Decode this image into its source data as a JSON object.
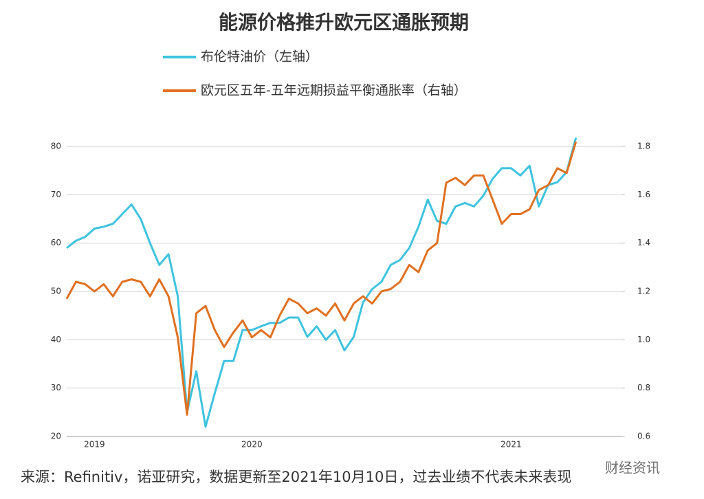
{
  "chart_data": {
    "type": "line",
    "title": "能源价格推升欧元区通胀预期",
    "source": "来源：Refinitiv，诺亚研究，数据更新至2021年10月10日，过去业绩不代表未来表现",
    "watermark": "财经资讯",
    "legend": "top",
    "grid": true,
    "categories": [
      null,
      null,
      null,
      "2019",
      null,
      null,
      null,
      null,
      null,
      null,
      null,
      null,
      null,
      null,
      null,
      null,
      null,
      null,
      null,
      null,
      "2020",
      null,
      null,
      null,
      null,
      null,
      null,
      null,
      null,
      null,
      null,
      null,
      null,
      null,
      null,
      null,
      null,
      null,
      null,
      null,
      null,
      null,
      null,
      null,
      null,
      null,
      null,
      null,
      "2021",
      null,
      null,
      null,
      null,
      null,
      null,
      null,
      null,
      null,
      null,
      null,
      null
    ],
    "ylim": [
      20,
      83
    ],
    "yticks": [
      20,
      30,
      40,
      50,
      60,
      70,
      80
    ],
    "y2lim": [
      0.6,
      1.86
    ],
    "y2ticks": [
      0.6,
      0.8,
      {
        "value": 1,
        "label": "1.0"
      },
      1.2,
      1.4,
      1.6,
      1.8
    ],
    "series": [
      {
        "name": "布伦特油价（左轴）",
        "color": "#3ec3de",
        "values": [
          59,
          60.5,
          61.3,
          63,
          63.4,
          64,
          66,
          68,
          65,
          60,
          55.5,
          57.7,
          49,
          25,
          33.5,
          22,
          29,
          35.6,
          35.6,
          42,
          42,
          42.8,
          43.5,
          43.5,
          44.6,
          44.6,
          40.6,
          42.8,
          40,
          42,
          37.8,
          40.6,
          47.7,
          50.5,
          52,
          55.5,
          56.5,
          59,
          63.4,
          69,
          64.6,
          64,
          67.6,
          68.3,
          67.6,
          69.8,
          73.3,
          75.5,
          75.5,
          74,
          76,
          67.6,
          72,
          72.6,
          74.7,
          81.8,
          null,
          null,
          null,
          null,
          null
        ]
      },
      {
        "name": "欧元区五年-五年远期损益平衡通胀率（右轴）",
        "color": "#e07020",
        "axis": "y2",
        "values": [
          1.17,
          1.24,
          1.23,
          1.2,
          1.23,
          1.18,
          1.24,
          1.25,
          1.24,
          1.18,
          1.25,
          1.18,
          1.01,
          0.69,
          1.11,
          1.14,
          1.04,
          0.97,
          1.03,
          1.08,
          1.01,
          1.04,
          1.01,
          1.1,
          1.17,
          1.15,
          1.11,
          1.13,
          1.1,
          1.15,
          1.08,
          1.15,
          1.18,
          1.15,
          1.2,
          1.21,
          1.24,
          1.31,
          1.28,
          1.37,
          1.4,
          1.65,
          1.67,
          1.64,
          1.68,
          1.68,
          1.58,
          1.48,
          1.52,
          1.52,
          1.54,
          1.62,
          1.64,
          1.71,
          1.69,
          1.82,
          null,
          null,
          null,
          null,
          null
        ]
      }
    ]
  }
}
